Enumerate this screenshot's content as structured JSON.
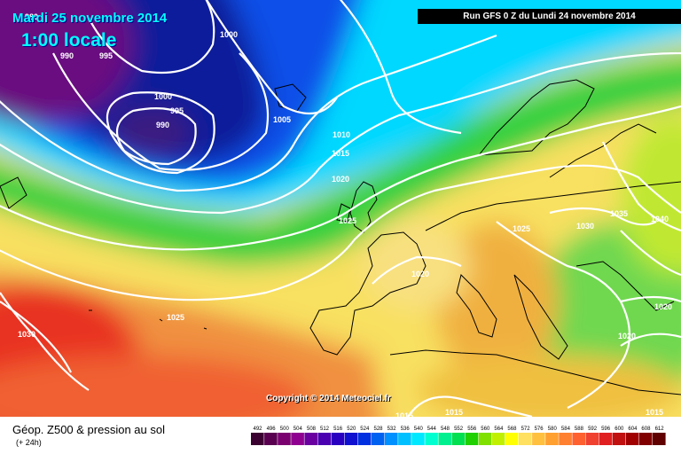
{
  "header": {
    "date": "Mardi 25 novembre 2014",
    "time": "1:00 locale",
    "run": "Run GFS 0 Z du Lundi 24 novembre 2014"
  },
  "copyright": "Copyright © 2014 Meteociel.fr",
  "legend": {
    "title": "Géop. Z500 & pression au sol",
    "subtitle": "(+ 24h)",
    "scale_values": [
      "492",
      "496",
      "500",
      "504",
      "508",
      "512",
      "516",
      "520",
      "524",
      "528",
      "532",
      "536",
      "540",
      "544",
      "548",
      "552",
      "556",
      "560",
      "564",
      "568",
      "572",
      "576",
      "580",
      "584",
      "588",
      "592",
      "596",
      "600",
      "604",
      "608",
      "612"
    ],
    "scale_colors": [
      "#3a0030",
      "#5a0050",
      "#7a0070",
      "#900090",
      "#6a00a0",
      "#4a00b0",
      "#2a00c0",
      "#1010d0",
      "#0030e0",
      "#0060f0",
      "#0090ff",
      "#00c0ff",
      "#00e8ff",
      "#00ffd0",
      "#00f090",
      "#00e050",
      "#20d000",
      "#80e000",
      "#c0f000",
      "#ffff00",
      "#ffe060",
      "#ffc040",
      "#ffa030",
      "#ff8030",
      "#ff6030",
      "#f04030",
      "#e02020",
      "#c01010",
      "#a00000",
      "#800000",
      "#600000"
    ]
  },
  "isobar_labels": [
    "980",
    "990",
    "995",
    "1000",
    "1000",
    "995",
    "990",
    "1005",
    "1010",
    "1015",
    "1020",
    "1025",
    "1020",
    "1025",
    "1030",
    "1035",
    "1040",
    "1020",
    "1020",
    "1025",
    "1030",
    "1015",
    "1015",
    "1015"
  ],
  "colors": {
    "deep_low": "#5a0d6a",
    "low": "#0a1f9a",
    "mid": "#00c8ff",
    "green": "#40dc40",
    "yellow": "#f8f060",
    "orange": "#f0a040",
    "red": "#e83020",
    "isobar": "#ffffff",
    "coast": "#000000"
  }
}
